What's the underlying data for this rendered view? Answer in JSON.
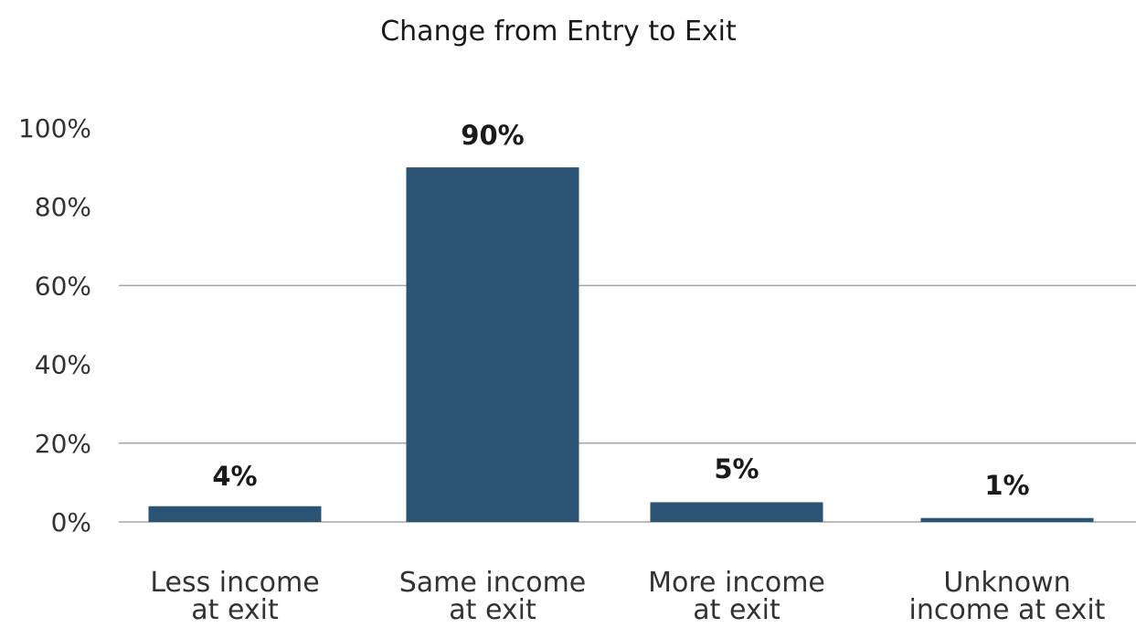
{
  "chart_data": {
    "type": "bar",
    "title": "Change from Entry to Exit",
    "categories": [
      [
        "Less income",
        "at exit"
      ],
      [
        "Same income",
        "at exit"
      ],
      [
        "More income",
        "at exit"
      ],
      [
        "Unknown",
        "income at exit"
      ]
    ],
    "values": [
      4,
      90,
      5,
      1
    ],
    "data_labels": [
      "4%",
      "90%",
      "5%",
      "1%"
    ],
    "ylim": [
      0,
      100
    ],
    "yticks": [
      0,
      20,
      40,
      60,
      80,
      100
    ],
    "ytick_labels": [
      "0%",
      "20%",
      "40%",
      "60%",
      "80%",
      "100%"
    ],
    "gridlines": [
      20,
      60
    ],
    "xlabel": "",
    "ylabel": "",
    "bar_color": "#2b5373",
    "legend": "none"
  }
}
